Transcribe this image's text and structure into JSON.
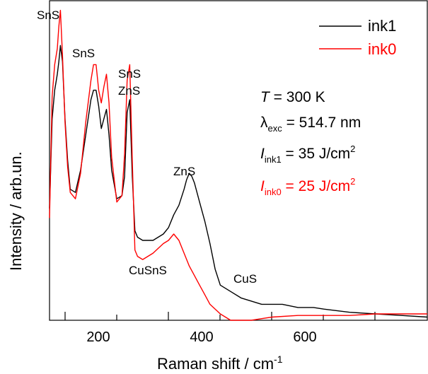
{
  "chart_data": {
    "type": "line",
    "title": "",
    "xlabel": "Raman shift / cm",
    "xlabel_sup": "-1",
    "ylabel": "Intensity / arb.un.",
    "xlim": [
      70,
      800
    ],
    "ylim": [
      0,
      100
    ],
    "xticks": [
      200,
      400,
      600
    ],
    "yticks_visible": false,
    "grid": false,
    "legend_position": "top-right",
    "series": [
      {
        "name": "ink1",
        "color": "#000000",
        "x": [
          70,
          75,
          80,
          85,
          88,
          91,
          95,
          100,
          105,
          110,
          120,
          130,
          140,
          150,
          155,
          160,
          165,
          170,
          175,
          180,
          185,
          190,
          200,
          210,
          215,
          220,
          225,
          230,
          235,
          240,
          250,
          270,
          290,
          300,
          310,
          320,
          330,
          335,
          340,
          345,
          350,
          360,
          370,
          380,
          390,
          400,
          420,
          440,
          460,
          480,
          500,
          520,
          550,
          580,
          600,
          650,
          700,
          750,
          800
        ],
        "y": [
          35,
          63,
          72,
          77,
          81,
          86,
          81,
          63,
          50,
          41,
          40,
          47,
          58,
          69,
          72,
          72,
          67,
          60,
          63,
          66,
          58,
          47,
          38,
          39,
          45,
          65,
          69,
          45,
          28,
          26,
          25,
          25,
          27,
          29,
          33,
          36,
          41,
          44,
          46,
          45,
          43,
          37,
          31,
          24,
          16,
          11,
          9,
          7,
          6,
          5,
          5,
          5,
          4,
          4,
          3.5,
          2.5,
          2,
          1.5,
          1
        ]
      },
      {
        "name": "ink0",
        "color": "#ff0000",
        "x": [
          70,
          75,
          80,
          85,
          88,
          91,
          95,
          100,
          105,
          110,
          120,
          130,
          140,
          150,
          155,
          160,
          165,
          170,
          175,
          180,
          185,
          190,
          200,
          210,
          215,
          220,
          225,
          230,
          235,
          240,
          250,
          270,
          290,
          300,
          310,
          320,
          330,
          340,
          350,
          360,
          370,
          380,
          400,
          420,
          440,
          460,
          480,
          500,
          550,
          600,
          650,
          700,
          750,
          800
        ],
        "y": [
          32,
          70,
          80,
          85,
          92,
          97,
          83,
          62,
          48,
          40,
          38,
          46,
          62,
          75,
          80,
          80,
          72,
          68,
          73,
          77,
          68,
          51,
          37,
          39,
          52,
          75,
          80,
          50,
          22,
          20,
          19,
          21,
          24,
          25,
          27,
          25,
          21,
          17,
          14,
          11,
          8,
          5,
          2,
          -1,
          -1,
          0,
          0.5,
          1,
          1.5,
          1.5,
          1.5,
          2,
          2,
          2
        ]
      }
    ],
    "annotations": [
      "SnS",
      "SnS",
      "SnS",
      "ZnS",
      "ZnS",
      "CuSnS",
      "CuS"
    ],
    "parameters": {
      "T_symbol": "T",
      "T_value": " = 300 K",
      "lambda_symbol": "λ",
      "lambda_sub": "exc",
      "lambda_value": " = 514.7 nm",
      "ink1_symbol": "I",
      "ink1_sub": "ink1",
      "ink1_value": " = 35 J/cm",
      "ink1_sup": "2",
      "ink0_symbol": "I",
      "ink0_sub": "ink0",
      "ink0_value": " = 25 J/cm",
      "ink0_sup": "2"
    }
  }
}
